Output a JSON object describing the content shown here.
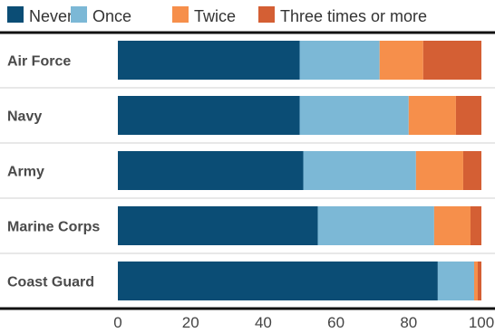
{
  "chart_data": {
    "type": "bar",
    "orientation": "horizontal",
    "stacked": true,
    "categories": [
      "Air Force",
      "Navy",
      "Army",
      "Marine Corps",
      "Coast Guard"
    ],
    "series": [
      {
        "name": "Never",
        "color": "#0b4d75",
        "values": [
          50,
          50,
          51,
          55,
          88
        ]
      },
      {
        "name": "Once",
        "color": "#7cb8d6",
        "values": [
          22,
          30,
          31,
          32,
          10
        ]
      },
      {
        "name": "Twice",
        "color": "#f68f4b",
        "values": [
          12,
          13,
          13,
          10,
          1
        ]
      },
      {
        "name": "Three times or more",
        "color": "#d45f34",
        "values": [
          16,
          7,
          5,
          3,
          1
        ]
      }
    ],
    "xlim": [
      0,
      100
    ],
    "xticks": [
      "0",
      "20",
      "40",
      "60",
      "80",
      "100"
    ],
    "legend_position": "top",
    "grid": false
  }
}
